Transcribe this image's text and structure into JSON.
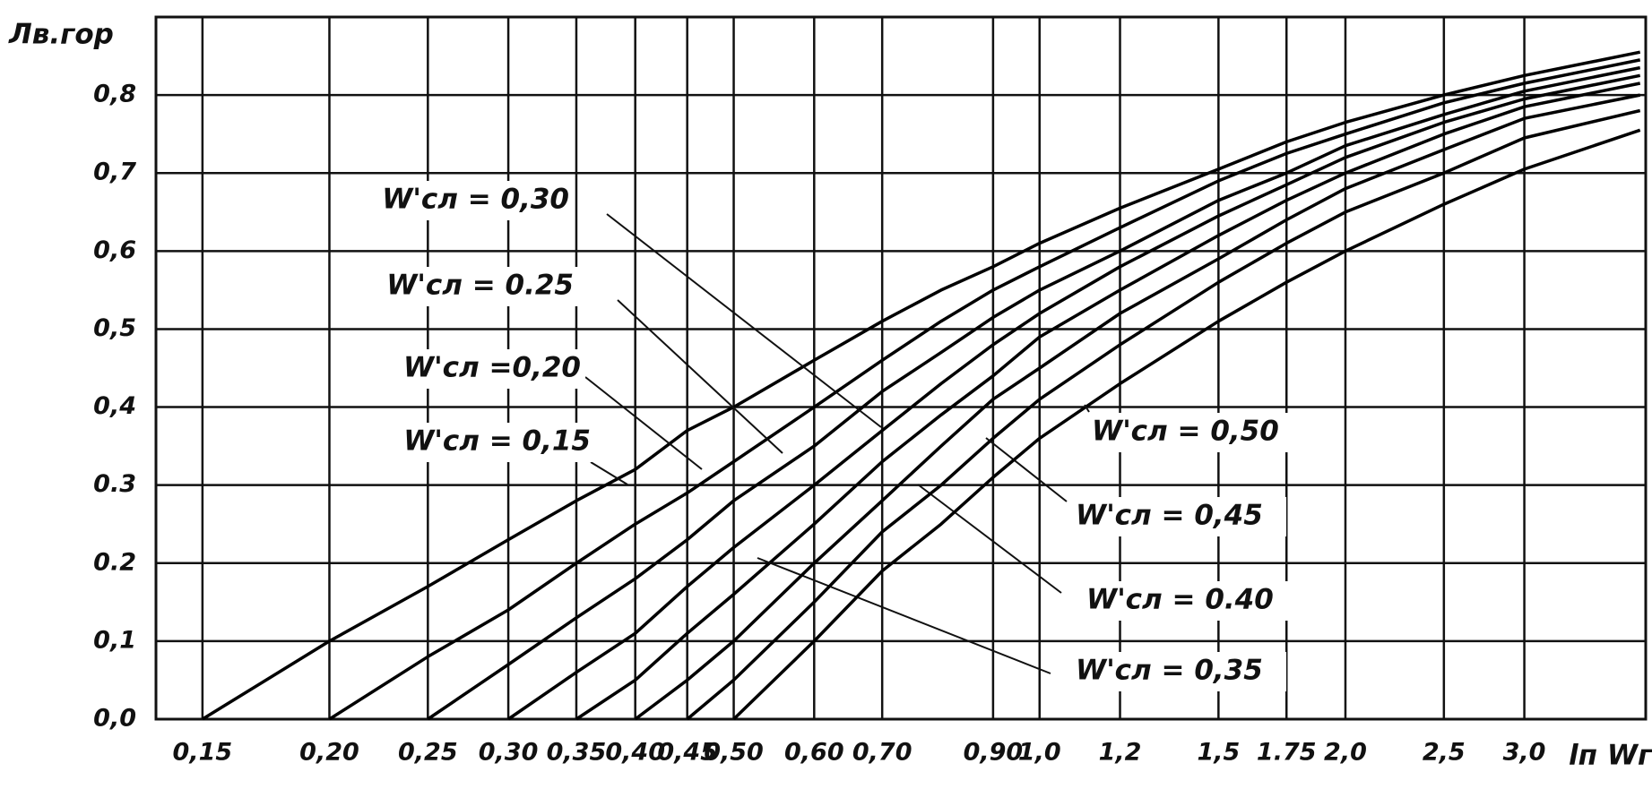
{
  "chart_data": {
    "type": "line",
    "y_label": "Лв.гор",
    "x_label": "lп Wгор",
    "xscale": "log",
    "grid": true,
    "xlim": [
      0.135,
      3.95
    ],
    "ylim": [
      0,
      0.9
    ],
    "xticks": [
      {
        "value": 0.15,
        "label": "0,15"
      },
      {
        "value": 0.2,
        "label": "0,20"
      },
      {
        "value": 0.25,
        "label": "0,25"
      },
      {
        "value": 0.3,
        "label": "0,30"
      },
      {
        "value": 0.35,
        "label": "0,35"
      },
      {
        "value": 0.4,
        "label": "0,40"
      },
      {
        "value": 0.45,
        "label": "0,45"
      },
      {
        "value": 0.5,
        "label": "0,50"
      },
      {
        "value": 0.6,
        "label": "0,60"
      },
      {
        "value": 0.7,
        "label": "0,70"
      },
      {
        "value": 0.9,
        "label": "0,90"
      },
      {
        "value": 1.0,
        "label": "1,0"
      },
      {
        "value": 1.2,
        "label": "1,2"
      },
      {
        "value": 1.5,
        "label": "1,5"
      },
      {
        "value": 1.75,
        "label": "1.75"
      },
      {
        "value": 2.0,
        "label": "2,0"
      },
      {
        "value": 2.5,
        "label": "2,5"
      },
      {
        "value": 3.0,
        "label": "3,0"
      }
    ],
    "yticks": [
      {
        "value": 0,
        "label": "0,0"
      },
      {
        "value": 0.1,
        "label": "0,1"
      },
      {
        "value": 0.2,
        "label": "0.2"
      },
      {
        "value": 0.3,
        "label": "0.3"
      },
      {
        "value": 0.4,
        "label": "0,4"
      },
      {
        "value": 0.5,
        "label": "0,5"
      },
      {
        "value": 0.6,
        "label": "0,6"
      },
      {
        "value": 0.7,
        "label": "0,7"
      },
      {
        "value": 0.8,
        "label": "0,8"
      }
    ],
    "x": [
      0.15,
      0.2,
      0.25,
      0.3,
      0.35,
      0.4,
      0.45,
      0.5,
      0.6,
      0.7,
      0.8,
      0.9,
      1.0,
      1.2,
      1.5,
      1.75,
      2.0,
      2.5,
      3.0,
      3.9
    ],
    "series": [
      {
        "name": "W'сл = 0,15",
        "color": "#000000",
        "values": [
          0,
          0.1,
          0.17,
          0.23,
          0.28,
          0.32,
          0.37,
          0.4,
          0.46,
          0.51,
          0.55,
          0.58,
          0.61,
          0.655,
          0.705,
          0.74,
          0.765,
          0.8,
          0.825,
          0.855
        ]
      },
      {
        "name": "W'сл =0,20",
        "color": "#000000",
        "values": [
          null,
          0,
          0.08,
          0.14,
          0.2,
          0.25,
          0.29,
          0.33,
          0.4,
          0.46,
          0.51,
          0.55,
          0.58,
          0.63,
          0.69,
          0.725,
          0.75,
          0.79,
          0.815,
          0.845
        ]
      },
      {
        "name": "W'сл = 0.25",
        "color": "#000000",
        "values": [
          null,
          null,
          0,
          0.07,
          0.13,
          0.18,
          0.23,
          0.28,
          0.35,
          0.42,
          0.47,
          0.515,
          0.55,
          0.6,
          0.665,
          0.7,
          0.735,
          0.775,
          0.805,
          0.835
        ]
      },
      {
        "name": "W'сл = 0,30",
        "color": "#000000",
        "values": [
          null,
          null,
          null,
          0,
          0.06,
          0.11,
          0.17,
          0.22,
          0.3,
          0.37,
          0.43,
          0.48,
          0.52,
          0.58,
          0.645,
          0.685,
          0.72,
          0.765,
          0.795,
          0.825
        ]
      },
      {
        "name": "W'сл = 0,35",
        "color": "#000000",
        "values": [
          null,
          null,
          null,
          null,
          0,
          0.05,
          0.11,
          0.16,
          0.25,
          0.33,
          0.39,
          0.44,
          0.49,
          0.55,
          0.62,
          0.665,
          0.7,
          0.75,
          0.785,
          0.815
        ]
      },
      {
        "name": "W'сл = 0.40",
        "color": "#000000",
        "values": [
          null,
          null,
          null,
          null,
          null,
          0,
          0.05,
          0.1,
          0.2,
          0.28,
          0.35,
          0.41,
          0.45,
          0.52,
          0.59,
          0.64,
          0.68,
          0.73,
          0.77,
          0.8
        ]
      },
      {
        "name": "W'сл = 0,45",
        "color": "#000000",
        "values": [
          null,
          null,
          null,
          null,
          null,
          null,
          0,
          0.05,
          0.15,
          0.24,
          0.3,
          0.36,
          0.41,
          0.48,
          0.56,
          0.61,
          0.65,
          0.7,
          0.745,
          0.78
        ]
      },
      {
        "name": "W'сл = 0,50",
        "color": "#000000",
        "values": [
          null,
          null,
          null,
          null,
          null,
          null,
          null,
          0,
          0.1,
          0.19,
          0.25,
          0.31,
          0.36,
          0.43,
          0.51,
          0.56,
          0.6,
          0.66,
          0.705,
          0.755
        ]
      }
    ]
  }
}
